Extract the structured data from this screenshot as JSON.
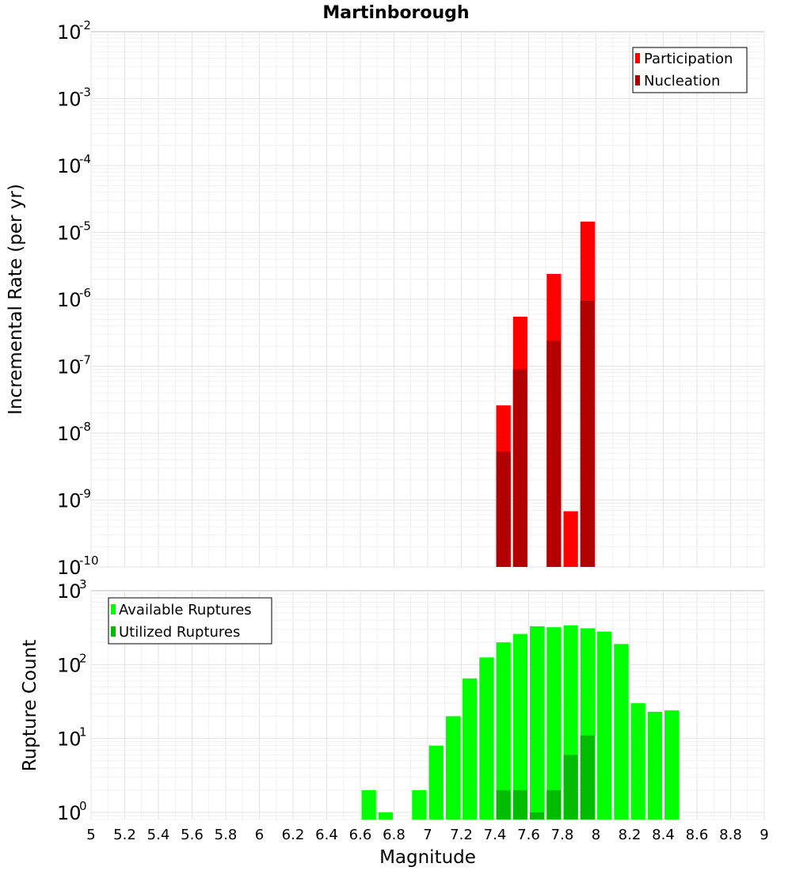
{
  "chart_data": [
    {
      "type": "bar",
      "title": "Martinborough",
      "ylabel": "Incremental Rate (per yr)",
      "xlabel": "",
      "xlim": [
        5,
        9
      ],
      "ylim": [
        1e-10,
        0.01
      ],
      "yscale": "log",
      "bin_width": 0.1,
      "legend_position": "top-right",
      "grid": true,
      "series": [
        {
          "name": "Participation",
          "color": "#ff0000",
          "x": [
            7.45,
            7.55,
            7.75,
            7.85,
            7.95
          ],
          "values": [
            2.6e-08,
            5.5e-07,
            2.4e-06,
            6.8e-10,
            1.45e-05
          ]
        },
        {
          "name": "Nucleation",
          "color": "#b30000",
          "x": [
            7.45,
            7.55,
            7.75,
            7.95
          ],
          "values": [
            5.3e-09,
            9e-08,
            2.4e-07,
            9.5e-07
          ]
        }
      ]
    },
    {
      "type": "bar",
      "title": "",
      "ylabel": "Rupture Count",
      "xlabel": "Magnitude",
      "xlim": [
        5,
        9
      ],
      "ylim": [
        0.8,
        1000
      ],
      "yscale": "log",
      "bin_width": 0.1,
      "legend_position": "top-left",
      "grid": true,
      "x_ticks": [
        "5",
        "5.2",
        "5.4",
        "5.6",
        "5.8",
        "6",
        "6.2",
        "6.4",
        "6.6",
        "6.8",
        "7",
        "7.2",
        "7.4",
        "7.6",
        "7.8",
        "8",
        "8.2",
        "8.4",
        "8.6",
        "8.8",
        "9"
      ],
      "series": [
        {
          "name": "Available Ruptures",
          "color": "#00ff00",
          "x": [
            6.65,
            6.75,
            6.95,
            7.05,
            7.15,
            7.25,
            7.35,
            7.45,
            7.55,
            7.65,
            7.75,
            7.85,
            7.95,
            8.05,
            8.15,
            8.25,
            8.35,
            8.45
          ],
          "values": [
            2,
            1,
            2,
            8,
            20,
            65,
            125,
            200,
            260,
            330,
            320,
            340,
            310,
            280,
            190,
            30,
            23,
            24
          ]
        },
        {
          "name": "Utilized Ruptures",
          "color": "#00bb00",
          "x": [
            7.45,
            7.55,
            7.65,
            7.75,
            7.85,
            7.95
          ],
          "values": [
            2,
            2,
            1,
            2,
            6,
            11
          ]
        }
      ]
    }
  ]
}
